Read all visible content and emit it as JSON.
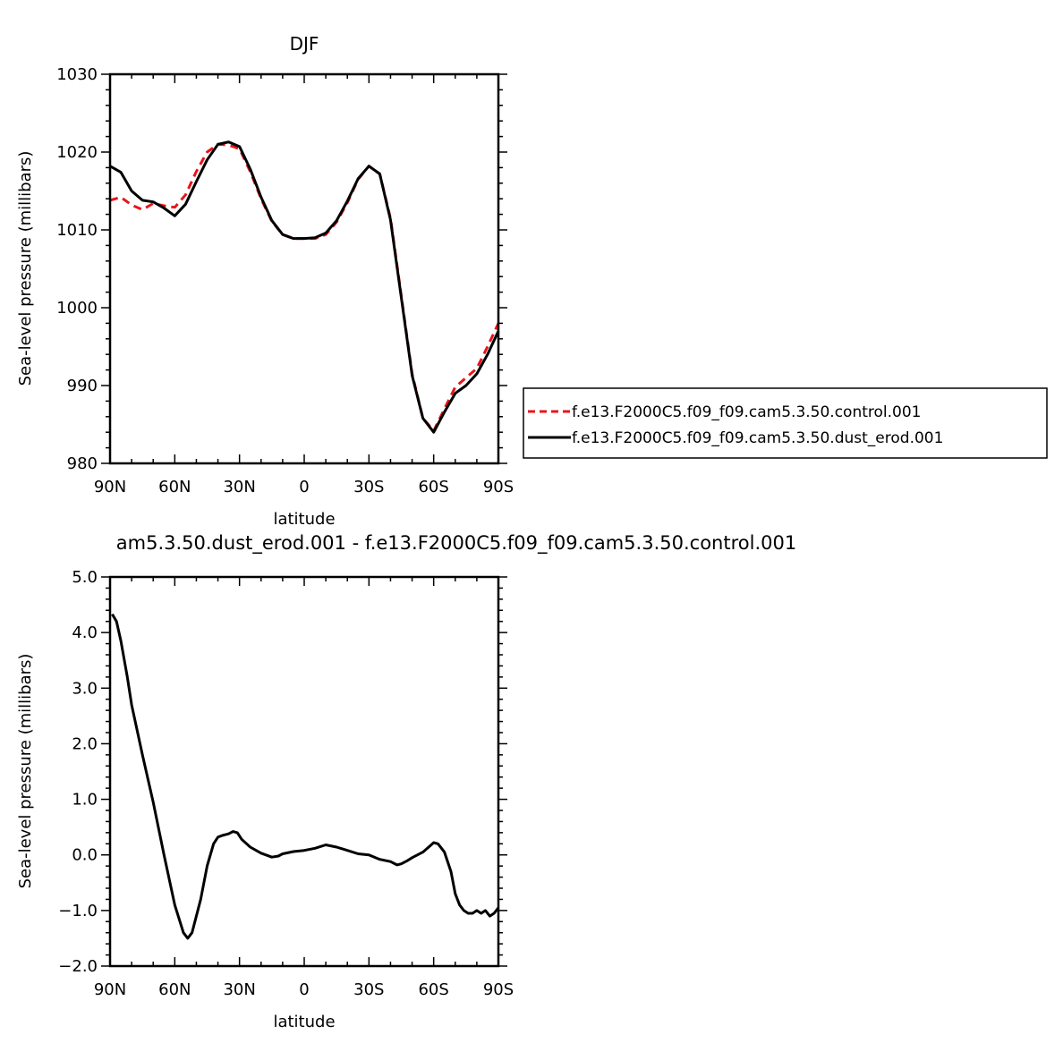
{
  "chart_data": [
    {
      "type": "line",
      "title": "DJF",
      "xlabel": "latitude",
      "ylabel": "Sea-level pressure (millibars)",
      "xlim": [
        90,
        -90
      ],
      "ylim": [
        980,
        1030
      ],
      "x_ticks": [
        {
          "value": 90,
          "label": "90N"
        },
        {
          "value": 60,
          "label": "60N"
        },
        {
          "value": 30,
          "label": "30N"
        },
        {
          "value": 0,
          "label": "0"
        },
        {
          "value": -30,
          "label": "30S"
        },
        {
          "value": -60,
          "label": "60S"
        },
        {
          "value": -90,
          "label": "90S"
        }
      ],
      "y_ticks": [
        {
          "value": 980,
          "label": "980"
        },
        {
          "value": 990,
          "label": "990"
        },
        {
          "value": 1000,
          "label": "1000"
        },
        {
          "value": 1010,
          "label": "1010"
        },
        {
          "value": 1020,
          "label": "1020"
        },
        {
          "value": 1030,
          "label": "1030"
        }
      ],
      "legend_placement": "right",
      "series": [
        {
          "name": "f.e13.F2000C5.f09_f09.cam5.3.50.control.001",
          "color": "#e8141c",
          "dash": "dashed",
          "x": [
            90,
            85,
            80,
            75,
            70,
            65,
            60,
            55,
            50,
            45,
            40,
            35,
            30,
            25,
            20,
            15,
            10,
            5,
            0,
            -5,
            -10,
            -15,
            -20,
            -25,
            -30,
            -35,
            -40,
            -45,
            -50,
            -55,
            -60,
            -65,
            -70,
            -75,
            -80,
            -85,
            -90
          ],
          "y": [
            1013.8,
            1014.2,
            1013.2,
            1012.6,
            1013.4,
            1013.1,
            1012.9,
            1014.5,
            1017.5,
            1020.0,
            1021.0,
            1020.9,
            1020.4,
            1017.5,
            1014.0,
            1011.1,
            1009.4,
            1008.9,
            1008.9,
            1008.9,
            1009.4,
            1011.0,
            1013.5,
            1016.5,
            1018.2,
            1017.2,
            1011.5,
            1001.5,
            991.5,
            985.8,
            984.2,
            987.0,
            989.8,
            991.0,
            992.2,
            995.0,
            998.0
          ]
        },
        {
          "name": "f.e13.F2000C5.f09_f09.cam5.3.50.dust_erod.001",
          "color": "#000000",
          "dash": "solid",
          "x": [
            90,
            85,
            80,
            75,
            70,
            65,
            60,
            55,
            50,
            45,
            40,
            35,
            30,
            25,
            20,
            15,
            10,
            5,
            0,
            -5,
            -10,
            -15,
            -20,
            -25,
            -30,
            -35,
            -40,
            -45,
            -50,
            -55,
            -60,
            -65,
            -70,
            -75,
            -80,
            -85,
            -90
          ],
          "y": [
            1018.2,
            1017.4,
            1015.0,
            1013.8,
            1013.6,
            1012.8,
            1011.8,
            1013.3,
            1016.2,
            1019.0,
            1021.0,
            1021.3,
            1020.7,
            1017.8,
            1014.2,
            1011.2,
            1009.4,
            1008.9,
            1008.9,
            1009.0,
            1009.6,
            1011.2,
            1013.7,
            1016.6,
            1018.2,
            1017.2,
            1011.3,
            1001.3,
            991.3,
            985.8,
            984.0,
            986.6,
            989.0,
            990.0,
            991.5,
            994.0,
            997.0
          ]
        }
      ]
    },
    {
      "type": "line",
      "title": "am5.3.50.dust_erod.001 - f.e13.F2000C5.f09_f09.cam5.3.50.control.001",
      "xlabel": "latitude",
      "ylabel": "Sea-level pressure (millibars)",
      "xlim": [
        90,
        -90
      ],
      "ylim": [
        -2.0,
        5.0
      ],
      "x_ticks": [
        {
          "value": 90,
          "label": "90N"
        },
        {
          "value": 60,
          "label": "60N"
        },
        {
          "value": 30,
          "label": "30N"
        },
        {
          "value": 0,
          "label": "0"
        },
        {
          "value": -30,
          "label": "30S"
        },
        {
          "value": -60,
          "label": "60S"
        },
        {
          "value": -90,
          "label": "90S"
        }
      ],
      "y_ticks": [
        {
          "value": -2.0,
          "label": "−2.0"
        },
        {
          "value": -1.0,
          "label": "−1.0"
        },
        {
          "value": 0.0,
          "label": "0.0"
        },
        {
          "value": 1.0,
          "label": "1.0"
        },
        {
          "value": 2.0,
          "label": "2.0"
        },
        {
          "value": 3.0,
          "label": "3.0"
        },
        {
          "value": 4.0,
          "label": "4.0"
        },
        {
          "value": 5.0,
          "label": "5.0"
        }
      ],
      "series": [
        {
          "color": "#000000",
          "dash": "solid",
          "x": [
            89,
            87,
            85,
            82,
            80,
            75,
            70,
            65,
            60,
            56,
            54,
            52,
            48,
            45,
            42,
            40,
            38,
            35,
            33,
            31,
            29,
            25,
            20,
            15,
            12,
            10,
            5,
            0,
            -5,
            -10,
            -15,
            -20,
            -25,
            -30,
            -35,
            -40,
            -43,
            -45,
            -48,
            -50,
            -55,
            -58,
            -60,
            -62,
            -65,
            -68,
            -70,
            -72,
            -74,
            -76,
            -78,
            -80,
            -82,
            -84,
            -86,
            -88,
            -90
          ],
          "y": [
            4.33,
            4.2,
            3.85,
            3.2,
            2.7,
            1.8,
            0.95,
            0.0,
            -0.9,
            -1.4,
            -1.5,
            -1.4,
            -0.8,
            -0.2,
            0.2,
            0.32,
            0.35,
            0.38,
            0.42,
            0.4,
            0.28,
            0.14,
            0.03,
            -0.04,
            -0.02,
            0.02,
            0.06,
            0.08,
            0.12,
            0.18,
            0.14,
            0.08,
            0.02,
            0.0,
            -0.08,
            -0.12,
            -0.18,
            -0.16,
            -0.1,
            -0.05,
            0.05,
            0.15,
            0.22,
            0.2,
            0.05,
            -0.3,
            -0.7,
            -0.9,
            -1.0,
            -1.05,
            -1.05,
            -1.0,
            -1.05,
            -1.0,
            -1.1,
            -1.05,
            -0.95
          ]
        }
      ]
    }
  ]
}
